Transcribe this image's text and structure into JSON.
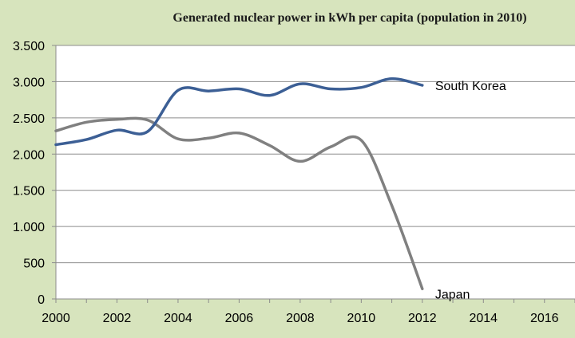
{
  "chart_data": {
    "type": "line",
    "title": "Generated nuclear power in kWh per capita (population in 2010)",
    "xlabel": "",
    "ylabel": "",
    "xlim": [
      2000,
      2017
    ],
    "ylim": [
      0,
      3500
    ],
    "x_ticks": [
      2000,
      2002,
      2004,
      2006,
      2008,
      2010,
      2012,
      2014,
      2016
    ],
    "y_ticks": [
      0,
      500,
      1000,
      1500,
      2000,
      2500,
      3000,
      3500
    ],
    "y_tick_labels": [
      "0",
      "500",
      "1.000",
      "1.500",
      "2.000",
      "2.500",
      "3.000",
      "3.500"
    ],
    "grid": "horizontal",
    "series": [
      {
        "name": "South Korea",
        "color": "#3c5f95",
        "x": [
          2000,
          2001,
          2002,
          2003,
          2004,
          2005,
          2006,
          2007,
          2008,
          2009,
          2010,
          2011,
          2012
        ],
        "values": [
          2130,
          2200,
          2330,
          2310,
          2880,
          2870,
          2900,
          2810,
          2970,
          2900,
          2920,
          3040,
          2950
        ]
      },
      {
        "name": "Japan",
        "color": "#808080",
        "x": [
          2000,
          2001,
          2002,
          2003,
          2004,
          2005,
          2006,
          2007,
          2008,
          2009,
          2010,
          2011,
          2012
        ],
        "values": [
          2320,
          2440,
          2480,
          2470,
          2210,
          2220,
          2290,
          2120,
          1900,
          2100,
          2190,
          1290,
          140
        ]
      }
    ]
  }
}
